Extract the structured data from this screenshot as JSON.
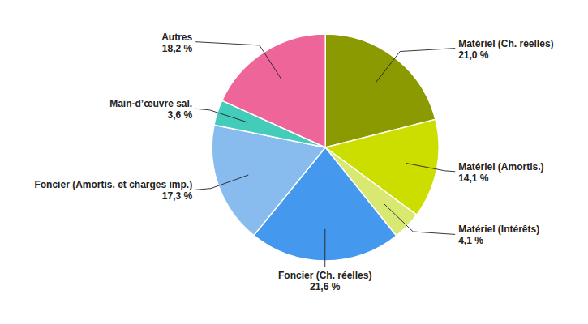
{
  "chart_data": {
    "type": "pie",
    "categories": [
      "Matériel (Ch. réelles)",
      "Matériel (Amortis.)",
      "Matériel (Intérêts)",
      "Foncier (Ch. réelles)",
      "Foncier (Amortis. et charges imp.)",
      "Main-d’œuvre sal.",
      "Autres"
    ],
    "values": [
      21.0,
      14.1,
      4.1,
      21.6,
      17.3,
      3.6,
      18.2
    ],
    "value_labels": [
      "21,0 %",
      "14,1 %",
      "4,1 %",
      "21,6 %",
      "17,3 %",
      "3,6 %",
      "18,2 %"
    ],
    "colors": [
      "#8a9a00",
      "#ccdd00",
      "#d8e870",
      "#4499ee",
      "#88bbee",
      "#44ccbb",
      "#ee6699"
    ]
  }
}
